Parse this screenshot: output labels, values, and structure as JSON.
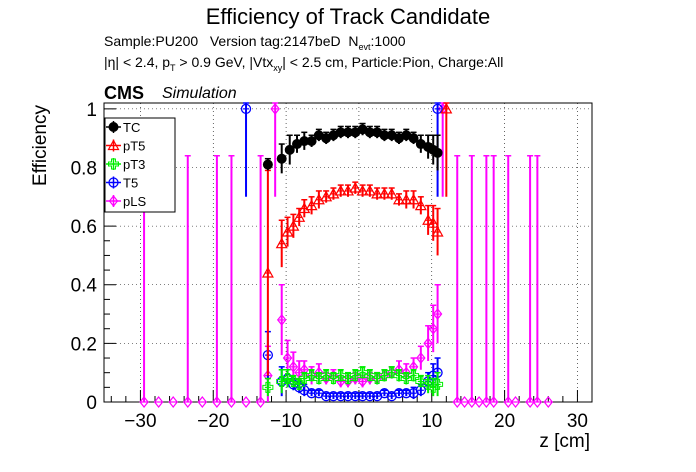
{
  "title": "Efficiency of Track Candidate",
  "subtitle": {
    "sample": "Sample:PU200",
    "version": "Version tag:2147beD",
    "nevt_prefix": "N",
    "nevt_sub": "evt",
    "nevt_value": ":1000",
    "cuts_1": "|η| < 2.4, p",
    "cuts_1_sub": "T",
    "cuts_2": " > 0.9 GeV, |Vtx",
    "cuts_2_sub": "xy",
    "cuts_3": "| < 2.5 cm, Particle:Pion, Charge:All"
  },
  "label_cms": "CMS",
  "label_sim": "Simulation",
  "colors": {
    "TC": "#000000",
    "pT5": "#ff0000",
    "pT3": "#00ee00",
    "T5": "#0000ff",
    "pLS": "#ff00ff"
  },
  "chart_data": {
    "type": "scatter",
    "xlabel": "z [cm]",
    "ylabel": "Efficiency",
    "xlim": [
      -35,
      32
    ],
    "ylim": [
      0,
      1.02
    ],
    "x_ticks": [
      -30,
      -20,
      -10,
      0,
      10,
      20,
      30
    ],
    "y_ticks": [
      0,
      0.2,
      0.4,
      0.6,
      0.8,
      1
    ],
    "grid": true,
    "legend_position": "top-left",
    "series": [
      {
        "name": "TC",
        "marker": "filled-circle",
        "points": [
          [
            -12.5,
            0.81,
            0.02
          ],
          [
            -10.6,
            0.83,
            0.05
          ],
          [
            -9.5,
            0.86,
            0.05
          ],
          [
            -8.5,
            0.88,
            0.03
          ],
          [
            -7.5,
            0.89,
            0.03
          ],
          [
            -6.5,
            0.89,
            0.02
          ],
          [
            -5.5,
            0.91,
            0.02
          ],
          [
            -4.5,
            0.9,
            0.02
          ],
          [
            -3.5,
            0.91,
            0.02
          ],
          [
            -2.5,
            0.92,
            0.02
          ],
          [
            -1.5,
            0.92,
            0.02
          ],
          [
            -0.5,
            0.92,
            0.02
          ],
          [
            0.5,
            0.93,
            0.02
          ],
          [
            1.5,
            0.92,
            0.02
          ],
          [
            2.5,
            0.92,
            0.02
          ],
          [
            3.5,
            0.91,
            0.02
          ],
          [
            4.5,
            0.91,
            0.02
          ],
          [
            5.5,
            0.9,
            0.02
          ],
          [
            6.5,
            0.91,
            0.02
          ],
          [
            7.5,
            0.9,
            0.02
          ],
          [
            8.5,
            0.88,
            0.03
          ],
          [
            9.5,
            0.87,
            0.04
          ],
          [
            10.2,
            0.86,
            0.05
          ],
          [
            10.8,
            0.85,
            0.06
          ]
        ]
      },
      {
        "name": "pT5",
        "marker": "open-triangle",
        "points": [
          [
            -12.5,
            0.44,
            0.35
          ],
          [
            -10.6,
            0.54,
            0.08
          ],
          [
            -9.8,
            0.58,
            0.05
          ],
          [
            -9.0,
            0.6,
            0.04
          ],
          [
            -8.2,
            0.63,
            0.03
          ],
          [
            -7.5,
            0.66,
            0.03
          ],
          [
            -6.5,
            0.67,
            0.03
          ],
          [
            -5.5,
            0.69,
            0.03
          ],
          [
            -4.5,
            0.7,
            0.02
          ],
          [
            -3.5,
            0.71,
            0.02
          ],
          [
            -2.5,
            0.72,
            0.02
          ],
          [
            -1.5,
            0.72,
            0.02
          ],
          [
            -0.5,
            0.73,
            0.02
          ],
          [
            0.5,
            0.72,
            0.02
          ],
          [
            1.5,
            0.72,
            0.02
          ],
          [
            2.5,
            0.71,
            0.02
          ],
          [
            3.5,
            0.71,
            0.02
          ],
          [
            4.5,
            0.71,
            0.02
          ],
          [
            5.5,
            0.69,
            0.02
          ],
          [
            6.5,
            0.69,
            0.03
          ],
          [
            7.5,
            0.69,
            0.03
          ],
          [
            8.5,
            0.67,
            0.03
          ],
          [
            9.5,
            0.62,
            0.05
          ],
          [
            10.2,
            0.61,
            0.06
          ],
          [
            10.8,
            0.58,
            0.08
          ],
          [
            12.0,
            1.0,
            0.3
          ]
        ]
      },
      {
        "name": "pT3",
        "marker": "open-cross",
        "points": [
          [
            -12.5,
            0.05,
            0.03
          ],
          [
            -10.6,
            0.07,
            0.04
          ],
          [
            -9.8,
            0.08,
            0.03
          ],
          [
            -9.0,
            0.07,
            0.02
          ],
          [
            -8.2,
            0.06,
            0.02
          ],
          [
            -7.5,
            0.08,
            0.02
          ],
          [
            -6.5,
            0.09,
            0.02
          ],
          [
            -5.5,
            0.08,
            0.02
          ],
          [
            -4.5,
            0.09,
            0.02
          ],
          [
            -3.5,
            0.08,
            0.02
          ],
          [
            -2.5,
            0.09,
            0.02
          ],
          [
            -1.5,
            0.08,
            0.02
          ],
          [
            -0.5,
            0.09,
            0.02
          ],
          [
            0.5,
            0.1,
            0.02
          ],
          [
            1.5,
            0.09,
            0.02
          ],
          [
            2.5,
            0.08,
            0.02
          ],
          [
            3.5,
            0.09,
            0.02
          ],
          [
            4.5,
            0.1,
            0.02
          ],
          [
            5.5,
            0.09,
            0.02
          ],
          [
            6.5,
            0.08,
            0.02
          ],
          [
            7.5,
            0.09,
            0.02
          ],
          [
            8.5,
            0.07,
            0.02
          ],
          [
            9.5,
            0.06,
            0.03
          ],
          [
            10.2,
            0.05,
            0.03
          ],
          [
            10.8,
            0.06,
            0.04
          ]
        ]
      },
      {
        "name": "T5",
        "marker": "open-circle",
        "points": [
          [
            -15.5,
            1.0,
            0.3
          ],
          [
            -12.5,
            0.16,
            0.08
          ],
          [
            -10.6,
            0.07,
            0.05
          ],
          [
            -9.8,
            0.08,
            0.03
          ],
          [
            -9.0,
            0.06,
            0.02
          ],
          [
            -8.2,
            0.05,
            0.02
          ],
          [
            -7.5,
            0.04,
            0.02
          ],
          [
            -6.5,
            0.03,
            0.01
          ],
          [
            -5.5,
            0.03,
            0.01
          ],
          [
            -4.5,
            0.02,
            0.01
          ],
          [
            -3.5,
            0.02,
            0.01
          ],
          [
            -2.5,
            0.02,
            0.01
          ],
          [
            -1.5,
            0.02,
            0.01
          ],
          [
            -0.5,
            0.02,
            0.01
          ],
          [
            0.5,
            0.02,
            0.01
          ],
          [
            1.5,
            0.02,
            0.01
          ],
          [
            2.5,
            0.02,
            0.01
          ],
          [
            3.5,
            0.03,
            0.01
          ],
          [
            4.5,
            0.02,
            0.01
          ],
          [
            5.5,
            0.03,
            0.01
          ],
          [
            6.5,
            0.03,
            0.01
          ],
          [
            7.5,
            0.03,
            0.02
          ],
          [
            8.5,
            0.04,
            0.02
          ],
          [
            9.5,
            0.07,
            0.03
          ],
          [
            10.2,
            0.09,
            0.04
          ],
          [
            10.8,
            0.1,
            0.05
          ],
          [
            10.8,
            1.0,
            0.3
          ]
        ]
      },
      {
        "name": "pLS",
        "marker": "open-diamond",
        "points": [
          [
            -29.5,
            0.0,
            0.84
          ],
          [
            -27.5,
            0.0,
            0.0
          ],
          [
            -25.5,
            0.0,
            0.0
          ],
          [
            -23.5,
            0.0,
            0.84
          ],
          [
            -21.5,
            0.0,
            0.0
          ],
          [
            -19.5,
            0.0,
            0.84
          ],
          [
            -17.5,
            0.0,
            0.84
          ],
          [
            -15.5,
            0.0,
            0.0
          ],
          [
            -13.5,
            0.0,
            0.84
          ],
          [
            -12.5,
            0.09,
            0.1
          ],
          [
            -11.5,
            1.0,
            0.3
          ],
          [
            -10.6,
            0.28,
            0.12
          ],
          [
            -9.8,
            0.15,
            0.06
          ],
          [
            -9.0,
            0.12,
            0.05
          ],
          [
            -8.2,
            0.1,
            0.04
          ],
          [
            -7.5,
            0.11,
            0.03
          ],
          [
            -6.5,
            0.09,
            0.03
          ],
          [
            -5.5,
            0.1,
            0.03
          ],
          [
            -4.5,
            0.08,
            0.02
          ],
          [
            -3.5,
            0.09,
            0.02
          ],
          [
            -2.5,
            0.07,
            0.02
          ],
          [
            -1.5,
            0.07,
            0.02
          ],
          [
            -0.5,
            0.08,
            0.02
          ],
          [
            0.5,
            0.07,
            0.02
          ],
          [
            1.5,
            0.08,
            0.02
          ],
          [
            2.5,
            0.08,
            0.02
          ],
          [
            3.5,
            0.09,
            0.02
          ],
          [
            4.5,
            0.1,
            0.02
          ],
          [
            5.5,
            0.11,
            0.03
          ],
          [
            6.5,
            0.1,
            0.03
          ],
          [
            7.5,
            0.12,
            0.03
          ],
          [
            8.5,
            0.15,
            0.04
          ],
          [
            9.5,
            0.2,
            0.06
          ],
          [
            10.2,
            0.25,
            0.08
          ],
          [
            10.8,
            0.3,
            0.1
          ],
          [
            11.5,
            1.0,
            0.3
          ],
          [
            13.5,
            0.0,
            0.84
          ],
          [
            14.5,
            0.0,
            0.0
          ],
          [
            15.5,
            0.0,
            0.84
          ],
          [
            16.5,
            0.0,
            0.0
          ],
          [
            17.5,
            0.0,
            0.84
          ],
          [
            18.5,
            0.0,
            0.84
          ],
          [
            20.5,
            0.0,
            0.84
          ],
          [
            21.5,
            0.0,
            0.0
          ],
          [
            23.5,
            0.0,
            0.84
          ],
          [
            24.5,
            0.0,
            0.84
          ],
          [
            26.0,
            0.0,
            0.0
          ]
        ]
      }
    ]
  }
}
